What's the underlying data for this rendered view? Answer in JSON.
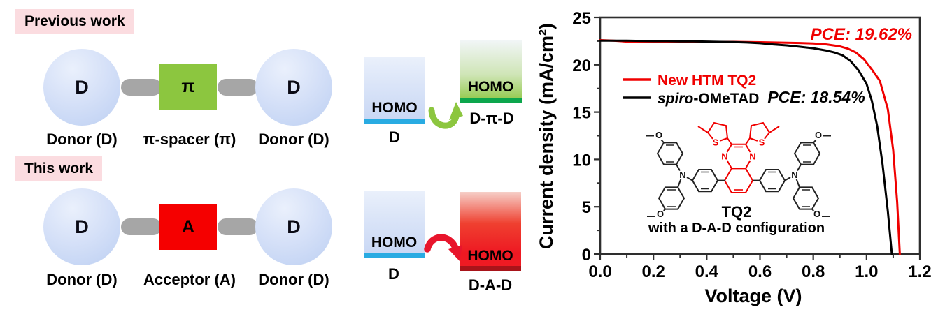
{
  "colors": {
    "accent_red": "#f00000",
    "series_black": "#000000",
    "green": "#8cc63f",
    "dark_green_strip": "#0ca64d",
    "cyan_strip": "#29abe2",
    "dark_red_strip": "#a8141a",
    "badge_pink": "#fbdce0",
    "connector_gray": "#a6a6a6",
    "donor_circle_blue": "#c9d8f4"
  },
  "diagram": {
    "previous": {
      "badge": "Previous work",
      "unit1": "D",
      "unit2": "π",
      "unit3": "D",
      "captions": [
        "Donor (D)",
        "π-spacer (π)",
        "Donor (D)"
      ]
    },
    "current": {
      "badge": "This work",
      "unit1": "D",
      "unit2": "A",
      "unit3": "D",
      "captions": [
        "Donor (D)",
        "Acceptor (A)",
        "Donor (D)"
      ]
    }
  },
  "energy": {
    "top": {
      "left_level": "HOMO",
      "left_caption": "D",
      "right_level": "HOMO",
      "right_caption": "D-π-D"
    },
    "bottom": {
      "left_level": "HOMO",
      "left_caption": "D",
      "right_level": "HOMO",
      "right_caption": "D-A-D"
    }
  },
  "chart": {
    "legend": {
      "series2_italic": "spiro",
      "series2_rest": "-OMeTAD"
    },
    "molecule": {
      "name": "TQ2",
      "caption": "with a D-A-D configuration",
      "atom_s": "S",
      "atom_n": "N",
      "atom_o": "O"
    }
  },
  "chart_data": {
    "type": "line",
    "title": "",
    "xlabel": "Voltage (V)",
    "ylabel": "Current density (mA/cm²)",
    "xlim": [
      0,
      1.2
    ],
    "ylim": [
      0,
      25
    ],
    "x_ticks": [
      0.0,
      0.2,
      0.4,
      0.6,
      0.8,
      1.0,
      1.2
    ],
    "y_ticks": [
      0,
      5,
      10,
      15,
      20,
      25
    ],
    "x_minor_step": 0.1,
    "y_minor_step": 2.5,
    "grid": false,
    "legend_position": "inside upper-left",
    "annotations": [
      {
        "text": "PCE: 19.62%",
        "color": "#f00000"
      },
      {
        "text": "PCE: 18.54%",
        "color": "#000000"
      }
    ],
    "series": [
      {
        "name": "New HTM TQ2",
        "color": "#f00000",
        "pce_percent": 19.62,
        "x": [
          0,
          0.05,
          0.1,
          0.15,
          0.2,
          0.25,
          0.3,
          0.35,
          0.4,
          0.45,
          0.5,
          0.55,
          0.6,
          0.65,
          0.7,
          0.75,
          0.8,
          0.85,
          0.9,
          0.93,
          0.96,
          0.99,
          1.02,
          1.05,
          1.08,
          1.1,
          1.115,
          1.125
        ],
        "y": [
          22.6,
          22.55,
          22.45,
          22.42,
          22.42,
          22.4,
          22.42,
          22.4,
          22.42,
          22.4,
          22.42,
          22.4,
          22.38,
          22.35,
          22.32,
          22.3,
          22.25,
          22.15,
          21.95,
          21.7,
          21.3,
          20.6,
          19.5,
          18.3,
          15.3,
          11.0,
          5.5,
          0
        ]
      },
      {
        "name": "spiro-OMeTAD",
        "color": "#000000",
        "pce_percent": 18.54,
        "x": [
          0,
          0.05,
          0.1,
          0.15,
          0.2,
          0.25,
          0.3,
          0.35,
          0.4,
          0.45,
          0.5,
          0.55,
          0.6,
          0.65,
          0.7,
          0.75,
          0.8,
          0.85,
          0.88,
          0.91,
          0.94,
          0.97,
          1.0,
          1.02,
          1.04,
          1.06,
          1.08,
          1.095
        ],
        "y": [
          22.55,
          22.55,
          22.55,
          22.52,
          22.5,
          22.5,
          22.48,
          22.48,
          22.45,
          22.42,
          22.4,
          22.35,
          22.28,
          22.15,
          22.05,
          21.9,
          21.75,
          21.5,
          21.3,
          21.0,
          20.4,
          19.4,
          18.0,
          16.2,
          13.5,
          9.5,
          4.5,
          0
        ]
      }
    ]
  }
}
